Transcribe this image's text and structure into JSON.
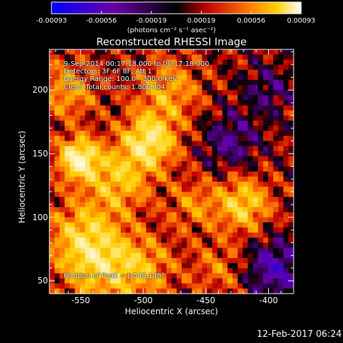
{
  "chart_data": {
    "type": "heatmap",
    "title": "Reconstructed RHESSI Image",
    "xlabel": "Heliocentric X (arcsec)",
    "ylabel": "Heliocentric Y (arcsec)",
    "xlim": [
      -575,
      -380
    ],
    "ylim": [
      40,
      232
    ],
    "xticks": [
      -550,
      -500,
      -450,
      -400
    ],
    "yticks": [
      50,
      100,
      150,
      200
    ],
    "colorbar": {
      "unit": "(photons cm⁻² s⁻¹ asec⁻²)",
      "range": [
        -0.00093,
        0.00093
      ],
      "tick_labels": [
        "-0.00093",
        "-0.00056",
        "-0.00019",
        "0.00019",
        "0.00056",
        "0.00093"
      ]
    },
    "info_lines": [
      "9-Sep-2014 00:17:18.000 to 00:17:18.000",
      "Detectors: 3F 6F 8F, Att 1",
      "Energy Range: 100.0 - 300.0 keV",
      "Clean    Total counts: 1.80E+04"
    ],
    "peak_text": "Position of Peak = [-548,146]",
    "timestamp": "12-Feb-2017 06:24",
    "hotspots": [
      {
        "x": -552,
        "y": 146,
        "amp": 1.0,
        "sigma": 11
      },
      {
        "x": -495,
        "y": 160,
        "amp": 0.8,
        "sigma": 15
      },
      {
        "x": -520,
        "y": 130,
        "amp": 0.55,
        "sigma": 18
      },
      {
        "x": -548,
        "y": 85,
        "amp": 0.55,
        "sigma": 20
      },
      {
        "x": -480,
        "y": 200,
        "amp": 0.45,
        "sigma": 18
      },
      {
        "x": -420,
        "y": 110,
        "amp": 0.65,
        "sigma": 15
      },
      {
        "x": -535,
        "y": 60,
        "amp": 0.5,
        "sigma": 20
      },
      {
        "x": -500,
        "y": 60,
        "amp": 0.45,
        "sigma": 18
      },
      {
        "x": -460,
        "y": 110,
        "amp": 0.35,
        "sigma": 14
      },
      {
        "x": -560,
        "y": 200,
        "amp": 0.45,
        "sigma": 16
      },
      {
        "x": -440,
        "y": 60,
        "amp": 0.3,
        "sigma": 15
      }
    ],
    "coldspots": [
      {
        "x": -395,
        "y": 60,
        "amp": 0.55,
        "sigma": 16
      },
      {
        "x": -430,
        "y": 160,
        "amp": 0.4,
        "sigma": 15
      },
      {
        "x": -400,
        "y": 200,
        "amp": 0.3,
        "sigma": 14
      }
    ]
  }
}
